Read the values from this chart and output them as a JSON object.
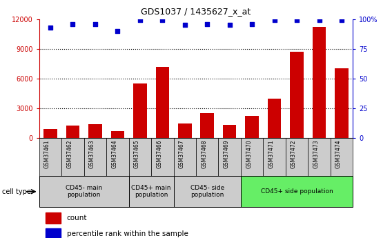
{
  "title": "GDS1037 / 1435627_x_at",
  "samples": [
    "GSM37461",
    "GSM37462",
    "GSM37463",
    "GSM37464",
    "GSM37465",
    "GSM37466",
    "GSM37467",
    "GSM37468",
    "GSM37469",
    "GSM37470",
    "GSM37471",
    "GSM37472",
    "GSM37473",
    "GSM37474"
  ],
  "counts": [
    900,
    1250,
    1400,
    700,
    5500,
    7200,
    1500,
    2500,
    1350,
    2200,
    4000,
    8700,
    11200,
    7000
  ],
  "percentiles": [
    93,
    96,
    96,
    90,
    99,
    99,
    95,
    96,
    95,
    96,
    99,
    99,
    99,
    99
  ],
  "cell_types": [
    {
      "label": "CD45- main\npopulation",
      "start": 0,
      "end": 3,
      "color": "#cccccc"
    },
    {
      "label": "CD45+ main\npopulation",
      "start": 4,
      "end": 5,
      "color": "#cccccc"
    },
    {
      "label": "CD45- side\npopulation",
      "start": 6,
      "end": 8,
      "color": "#cccccc"
    },
    {
      "label": "CD45+ side population",
      "start": 9,
      "end": 13,
      "color": "#66ee66"
    }
  ],
  "bar_color": "#cc0000",
  "dot_color": "#0000cc",
  "ylim_left": [
    0,
    12000
  ],
  "ylim_right": [
    0,
    100
  ],
  "yticks_left": [
    0,
    3000,
    6000,
    9000,
    12000
  ],
  "yticks_right": [
    0,
    25,
    50,
    75,
    100
  ],
  "grid_values": [
    3000,
    6000,
    9000
  ],
  "tick_bg_color": "#cccccc",
  "background_color": "#ffffff"
}
